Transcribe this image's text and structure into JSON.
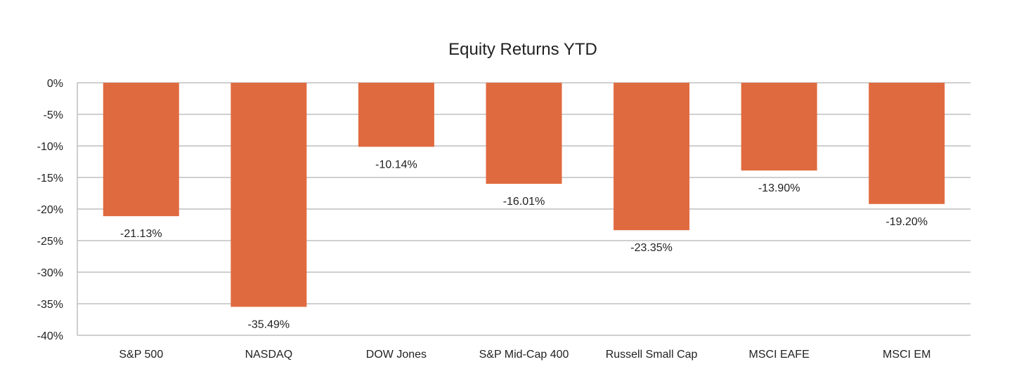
{
  "chart_data": {
    "type": "bar",
    "title": "Equity Returns YTD",
    "categories": [
      "S&P 500",
      "NASDAQ",
      "DOW Jones",
      "S&P Mid-Cap 400",
      "Russell Small Cap",
      "MSCI EAFE",
      "MSCI EM"
    ],
    "values": [
      -21.13,
      -35.49,
      -10.14,
      -16.01,
      -23.35,
      -13.9,
      -19.2
    ],
    "data_labels": [
      "-21.13%",
      "-35.49%",
      "-10.14%",
      "-16.01%",
      "-23.35%",
      "-13.90%",
      "-19.20%"
    ],
    "ylim": [
      -40,
      0
    ],
    "yticks": [
      0,
      -5,
      -10,
      -15,
      -20,
      -25,
      -30,
      -35,
      -40
    ],
    "ytick_labels": [
      "0%",
      "-5%",
      "-10%",
      "-15%",
      "-20%",
      "-25%",
      "-30%",
      "-35%",
      "-40%"
    ],
    "xlabel": "",
    "ylabel": "",
    "grid": true,
    "legend": "none",
    "bar_color": "#e06a3f"
  }
}
